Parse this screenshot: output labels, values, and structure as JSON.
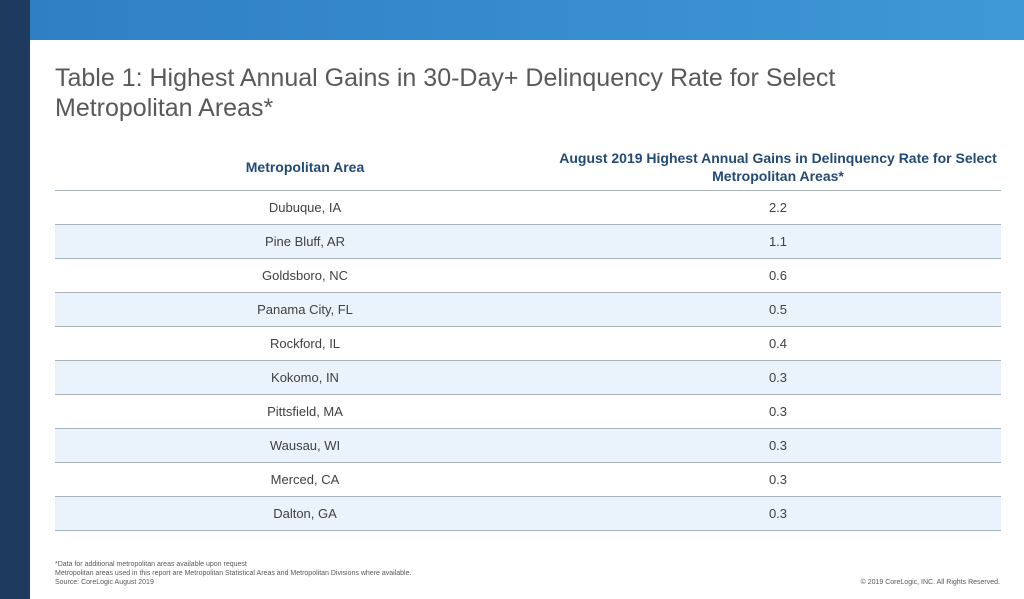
{
  "title": "Table 1: Highest Annual Gains in 30-Day+ Delinquency Rate for Select Metropolitan Areas*",
  "table": {
    "headers": [
      "Metropolitan Area",
      "August 2019 Highest Annual Gains in Delinquency Rate for Select Metropolitan Areas*"
    ],
    "rows": [
      [
        "Dubuque, IA",
        "2.2"
      ],
      [
        "Pine Bluff, AR",
        "1.1"
      ],
      [
        "Goldsboro, NC",
        "0.6"
      ],
      [
        "Panama City, FL",
        "0.5"
      ],
      [
        "Rockford, IL",
        "0.4"
      ],
      [
        "Kokomo, IN",
        "0.3"
      ],
      [
        "Pittsfield, MA",
        "0.3"
      ],
      [
        "Wausau, WI",
        "0.3"
      ],
      [
        "Merced, CA",
        "0.3"
      ],
      [
        "Dalton, GA",
        "0.3"
      ]
    ]
  },
  "footnotes": [
    "*Data for additional metropolitan areas available upon request",
    "Metropolitan areas used in this report are Metropolitan Statistical Areas and Metropolitan Divisions where available.",
    "Source: CoreLogic August 2019"
  ],
  "copyright": "© 2019 CoreLogic, INC. All Rights Reserved.",
  "colors": {
    "left_bar": "#1f3a5f",
    "top_band": "#3a90d0",
    "header_text": "#234a75",
    "stripe": "#eaf3fb"
  }
}
